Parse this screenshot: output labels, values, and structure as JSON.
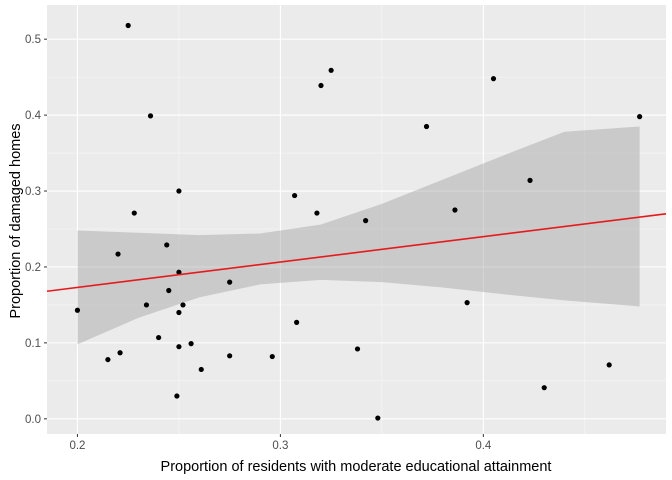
{
  "chart_data": {
    "type": "scatter",
    "title": "",
    "xlabel": "Proportion of residents with moderate educational attainment",
    "ylabel": "Proportion of damaged homes",
    "xlim": [
      0.185,
      0.49
    ],
    "ylim": [
      -0.02,
      0.545
    ],
    "x_ticks": [
      0.2,
      0.3,
      0.4
    ],
    "x_tick_labels": [
      "0.2",
      "0.3",
      "0.4"
    ],
    "y_ticks": [
      0.0,
      0.1,
      0.2,
      0.3,
      0.4,
      0.5
    ],
    "y_tick_labels": [
      "0.0",
      "0.1",
      "0.2",
      "0.3",
      "0.4",
      "0.5"
    ],
    "grid": true,
    "legend": "none",
    "colors": {
      "panel_background": "#ebebeb",
      "grid_major": "#ffffff",
      "points": "#000000",
      "trend_line": "#e41a1c",
      "confidence_band": "#999999"
    },
    "points": [
      {
        "x": 0.2,
        "y": 0.143
      },
      {
        "x": 0.215,
        "y": 0.078
      },
      {
        "x": 0.22,
        "y": 0.217
      },
      {
        "x": 0.221,
        "y": 0.087
      },
      {
        "x": 0.225,
        "y": 0.518
      },
      {
        "x": 0.228,
        "y": 0.271
      },
      {
        "x": 0.234,
        "y": 0.15
      },
      {
        "x": 0.236,
        "y": 0.399
      },
      {
        "x": 0.24,
        "y": 0.107
      },
      {
        "x": 0.244,
        "y": 0.229
      },
      {
        "x": 0.245,
        "y": 0.169
      },
      {
        "x": 0.249,
        "y": 0.03
      },
      {
        "x": 0.25,
        "y": 0.095
      },
      {
        "x": 0.25,
        "y": 0.14
      },
      {
        "x": 0.25,
        "y": 0.193
      },
      {
        "x": 0.25,
        "y": 0.3
      },
      {
        "x": 0.252,
        "y": 0.15
      },
      {
        "x": 0.256,
        "y": 0.099
      },
      {
        "x": 0.261,
        "y": 0.065
      },
      {
        "x": 0.275,
        "y": 0.083
      },
      {
        "x": 0.275,
        "y": 0.18
      },
      {
        "x": 0.296,
        "y": 0.082
      },
      {
        "x": 0.307,
        "y": 0.294
      },
      {
        "x": 0.308,
        "y": 0.127
      },
      {
        "x": 0.318,
        "y": 0.271
      },
      {
        "x": 0.32,
        "y": 0.439
      },
      {
        "x": 0.325,
        "y": 0.459
      },
      {
        "x": 0.338,
        "y": 0.092
      },
      {
        "x": 0.342,
        "y": 0.261
      },
      {
        "x": 0.348,
        "y": 0.001
      },
      {
        "x": 0.372,
        "y": 0.385
      },
      {
        "x": 0.386,
        "y": 0.275
      },
      {
        "x": 0.392,
        "y": 0.153
      },
      {
        "x": 0.405,
        "y": 0.448
      },
      {
        "x": 0.423,
        "y": 0.314
      },
      {
        "x": 0.43,
        "y": 0.041
      },
      {
        "x": 0.462,
        "y": 0.071
      },
      {
        "x": 0.477,
        "y": 0.398
      }
    ],
    "trend_line": {
      "x": [
        0.185,
        0.49
      ],
      "y": [
        0.168,
        0.27
      ]
    },
    "confidence_band": {
      "x": [
        0.2,
        0.23,
        0.26,
        0.29,
        0.32,
        0.35,
        0.38,
        0.41,
        0.44,
        0.477
      ],
      "lower": [
        0.098,
        0.133,
        0.16,
        0.177,
        0.183,
        0.18,
        0.173,
        0.164,
        0.156,
        0.148
      ],
      "upper": [
        0.248,
        0.245,
        0.242,
        0.244,
        0.256,
        0.283,
        0.315,
        0.347,
        0.378,
        0.385
      ]
    }
  }
}
